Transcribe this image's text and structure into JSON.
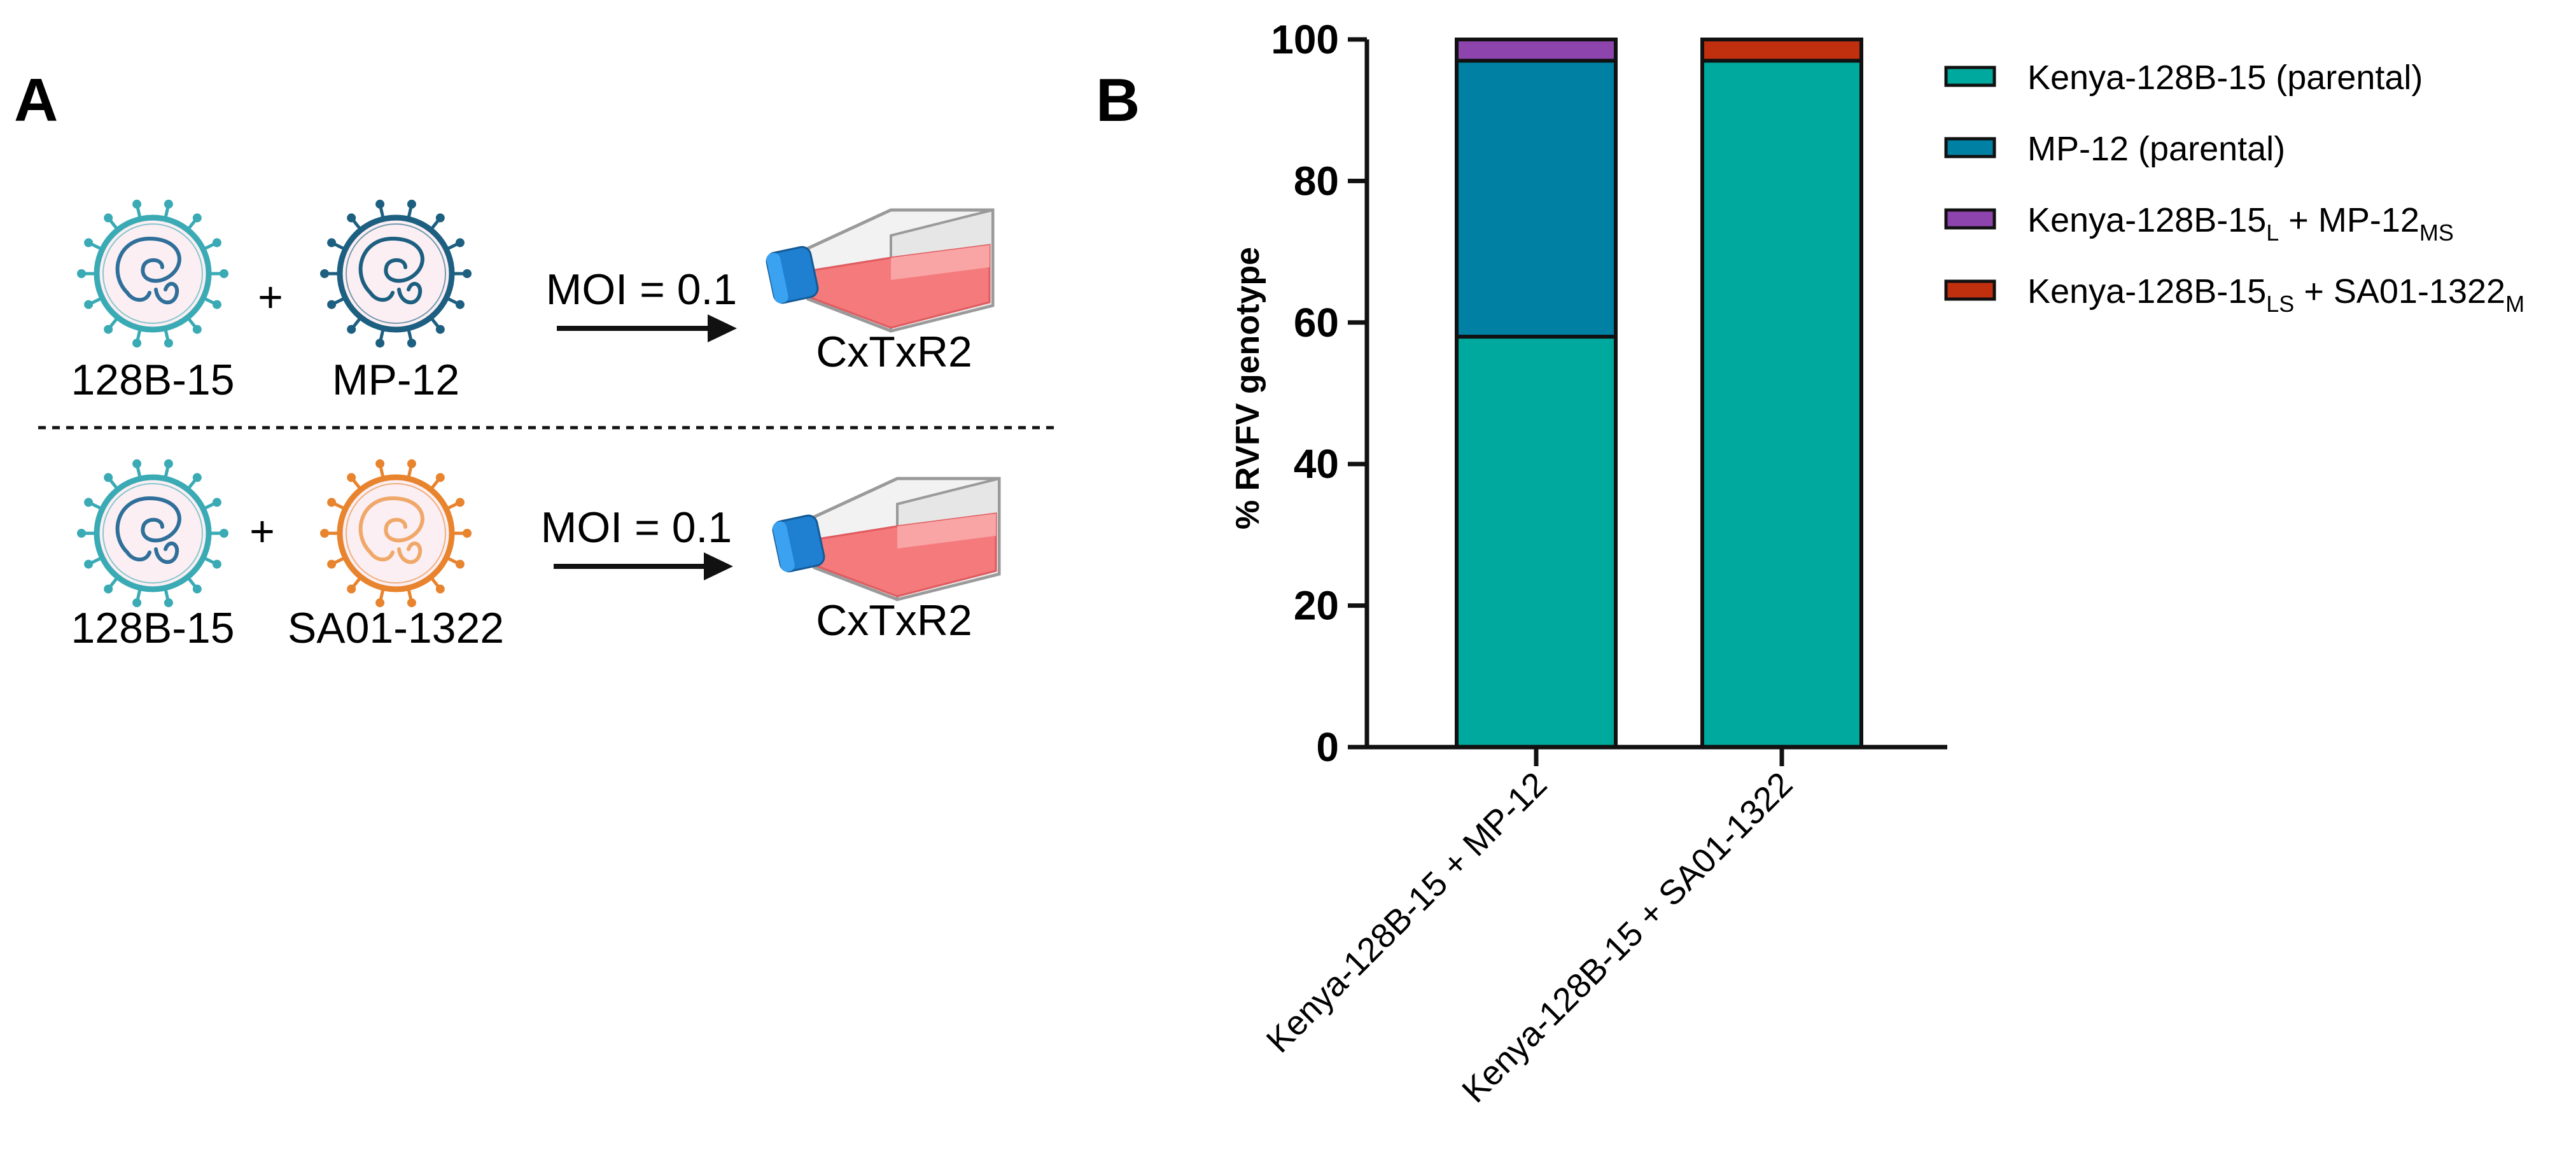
{
  "panel_a": {
    "letter": "A",
    "rows": [
      {
        "virus1": {
          "label": "128B-15",
          "color": "#3aaab5",
          "genome": "#2f6f9a"
        },
        "plus": "+",
        "virus2": {
          "label": "MP-12",
          "color": "#1d5f80",
          "genome": "#1d5f80"
        },
        "moi": "MOI = 0.1",
        "cell": "CxTxR2"
      },
      {
        "virus1": {
          "label": "128B-15",
          "color": "#3aaab5",
          "genome": "#2f6f9a"
        },
        "plus": "+",
        "virus2": {
          "label": "SA01-1322",
          "color": "#e8832e",
          "genome": "#f0a86a"
        },
        "moi": "MOI = 0.1",
        "cell": "CxTxR2"
      }
    ]
  },
  "panel_b": {
    "letter": "B"
  },
  "chart_data": {
    "type": "bar",
    "stacked": true,
    "title": "",
    "xlabel": "",
    "ylabel": "% RVFV genotype",
    "ylim": [
      0,
      100
    ],
    "yticks": [
      "0",
      "20",
      "40",
      "60",
      "80",
      "100"
    ],
    "categories": [
      "Kenya-128B-15 + MP-12",
      "Kenya-128B-15 + SA01-1322"
    ],
    "series": [
      {
        "name": "Kenya-128B-15 (parental)",
        "color": "#00a99d",
        "values": [
          58,
          97
        ]
      },
      {
        "name": "MP-12 (parental)",
        "color": "#0081a3",
        "values": [
          39,
          0
        ]
      },
      {
        "name": "Kenya-128B-15",
        "sub": "L",
        "mid": " + MP-12",
        "sub2": "MS",
        "color": "#8e44ad",
        "values": [
          3,
          0
        ]
      },
      {
        "name": "Kenya-128B-15",
        "sub": "LS",
        "mid": " + SA01-1322",
        "sub2": "M",
        "color": "#c0300f",
        "values": [
          0,
          3
        ]
      }
    ]
  }
}
